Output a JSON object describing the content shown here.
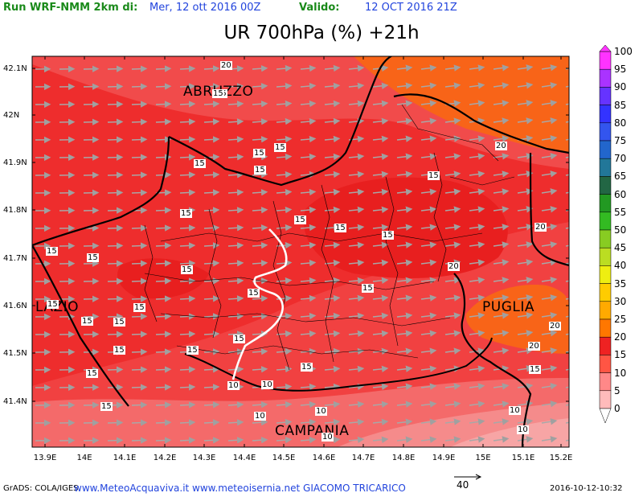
{
  "header": {
    "run_label": "Run WRF-NMM 2km di:",
    "run_date": "Mer, 12 ott 2016 00Z",
    "valid_label": "Valido:",
    "valid_date": "12 OCT 2016 21Z"
  },
  "title": "UR 700hPa (%) +21h",
  "axes": {
    "lat_labels": [
      "42.1N",
      "42N",
      "41.9N",
      "41.8N",
      "41.7N",
      "41.6N",
      "41.5N",
      "41.4N"
    ],
    "lon_labels": [
      "13.9E",
      "14E",
      "14.1E",
      "14.2E",
      "14.3E",
      "14.4E",
      "14.5E",
      "14.6E",
      "14.7E",
      "14.8E",
      "14.9E",
      "15E",
      "15.1E",
      "15.2E"
    ]
  },
  "regions": {
    "abruzzo": "ABRUZZO",
    "lazio": "LAZIO",
    "puglia": "PUGLIA",
    "campania": "CAMPANIA"
  },
  "contour_labels": [
    "20",
    "15",
    "15",
    "15",
    "15",
    "15",
    "20",
    "15",
    "15",
    "15",
    "15",
    "20",
    "15",
    "15",
    "15",
    "20",
    "15",
    "15",
    "15",
    "15",
    "15",
    "15",
    "15",
    "15",
    "15",
    "20",
    "15",
    "15",
    "15",
    "15",
    "15",
    "10",
    "10",
    "10",
    "10",
    "10",
    "10",
    "10",
    "20",
    "15"
  ],
  "colorbar": {
    "labels": [
      "100",
      "95",
      "90",
      "85",
      "80",
      "75",
      "70",
      "65",
      "60",
      "55",
      "50",
      "45",
      "40",
      "35",
      "30",
      "25",
      "20",
      "15",
      "10",
      "5",
      "0"
    ],
    "colors": [
      "#ff33ff",
      "#aa33ff",
      "#6633ff",
      "#3333ff",
      "#3355ee",
      "#2266cc",
      "#227799",
      "#226644",
      "#229922",
      "#33bb22",
      "#88cc22",
      "#bbdd22",
      "#eeee11",
      "#ffcc00",
      "#ffaa00",
      "#ff7700",
      "#ee2222",
      "#ff5544",
      "#ff8888",
      "#ffbbbb"
    ]
  },
  "footer": {
    "grads": "GrADS: COLA/IGES",
    "credits": "www.MeteoAcquaviva.it www.meteoisernia.net GIACOMO TRICARICO",
    "scale_value": "40",
    "timestamp": "2016-10-12-10:32"
  }
}
